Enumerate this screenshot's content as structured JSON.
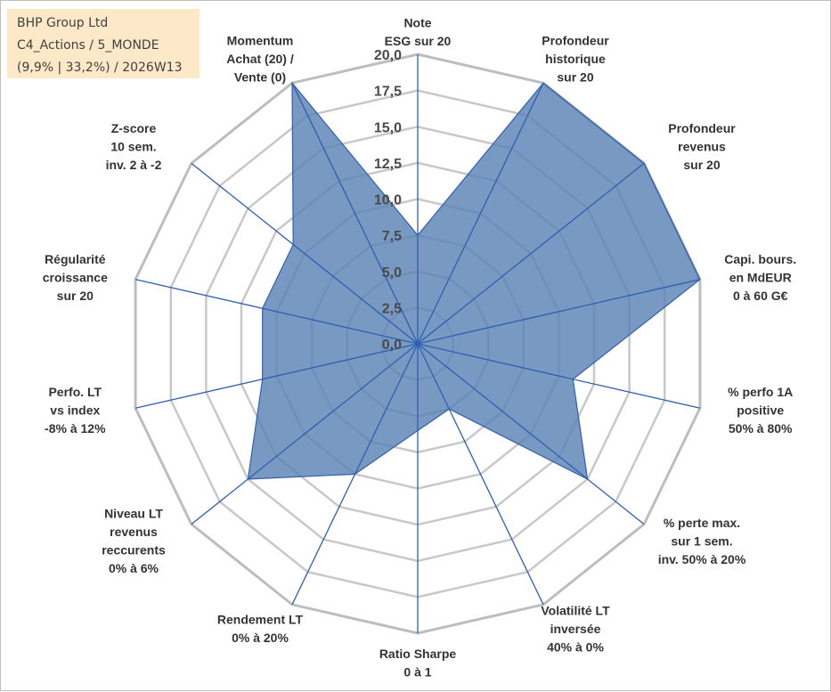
{
  "header": {
    "line1": "BHP Group Ltd",
    "line2": "C4_Actions / 5_MONDE",
    "line3": "(9,9% | 33,2%) / 2026W13"
  },
  "colors": {
    "fill": "#5a82b4",
    "line": "#2f5fb0",
    "grid": "#c8c8c8",
    "info_bg": "#fde9c8"
  },
  "chart_data": {
    "type": "radar",
    "rmin": 0,
    "rmax": 20,
    "ticks": [
      "0,0",
      "2,5",
      "5,0",
      "7,5",
      "10,0",
      "12,5",
      "15,0",
      "17,5",
      "20,0"
    ],
    "tick_values": [
      0,
      2.5,
      5,
      7.5,
      10,
      12.5,
      15,
      17.5,
      20
    ],
    "axes": [
      {
        "lines": [
          "Note",
          "ESG sur 20"
        ],
        "value": 7.5
      },
      {
        "lines": [
          "Profondeur",
          "historique",
          "sur 20"
        ],
        "value": 20
      },
      {
        "lines": [
          "Profondeur",
          "revenus",
          "sur 20"
        ],
        "value": 20
      },
      {
        "lines": [
          "Capi. bours.",
          "en MdEUR",
          "0 à 60 G€"
        ],
        "value": 20
      },
      {
        "lines": [
          "% perfo 1A",
          "positive",
          "50% à 80%"
        ],
        "value": 11
      },
      {
        "lines": [
          "% perte max.",
          "sur 1 sem.",
          "inv. 50% à 20%"
        ],
        "value": 15
      },
      {
        "lines": [
          "Volatilité LT",
          "inversée",
          "40% à 0%"
        ],
        "value": 5
      },
      {
        "lines": [
          "Ratio Sharpe",
          "0 à 1"
        ],
        "value": 6
      },
      {
        "lines": [
          "Rendement LT",
          "0% à 20%"
        ],
        "value": 10
      },
      {
        "lines": [
          "Niveau LT",
          "revenus",
          "reccurents",
          "0% à 6%"
        ],
        "value": 15
      },
      {
        "lines": [
          "Perfo. LT",
          "vs index",
          "-8% à 12%"
        ],
        "value": 11
      },
      {
        "lines": [
          "Régularité",
          "croissance",
          "sur 20"
        ],
        "value": 11
      },
      {
        "lines": [
          "Z-score",
          "10 sem.",
          "inv. 2 à -2"
        ],
        "value": 11
      },
      {
        "lines": [
          "Momentum",
          "Achat (20) /",
          "Vente (0)"
        ],
        "value": 20
      }
    ]
  }
}
